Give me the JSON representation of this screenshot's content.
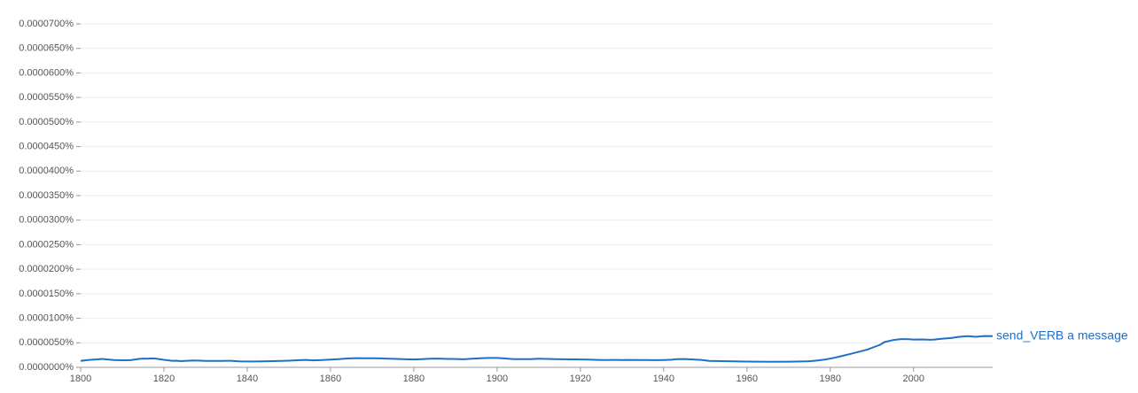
{
  "chart_data": {
    "type": "line",
    "x": [
      1800,
      1801,
      1802,
      1804,
      1805,
      1806,
      1808,
      1810,
      1812,
      1814,
      1815,
      1816,
      1817,
      1818,
      1820,
      1822,
      1823,
      1824,
      1825,
      1827,
      1829,
      1830,
      1832,
      1834,
      1836,
      1838,
      1840,
      1842,
      1844,
      1846,
      1848,
      1850,
      1852,
      1854,
      1856,
      1858,
      1860,
      1862,
      1864,
      1866,
      1868,
      1870,
      1872,
      1874,
      1876,
      1878,
      1880,
      1882,
      1884,
      1886,
      1888,
      1890,
      1892,
      1894,
      1896,
      1898,
      1900,
      1902,
      1904,
      1906,
      1908,
      1910,
      1912,
      1914,
      1916,
      1918,
      1920,
      1922,
      1924,
      1926,
      1928,
      1930,
      1932,
      1934,
      1936,
      1938,
      1940,
      1942,
      1943,
      1945,
      1947,
      1949,
      1951,
      1953,
      1955,
      1957,
      1960,
      1963,
      1966,
      1970,
      1973,
      1975,
      1977,
      1979,
      1981,
      1983,
      1985,
      1987,
      1989,
      1990,
      1992,
      1993,
      1995,
      1997,
      1999,
      2000,
      2002,
      2004,
      2005,
      2007,
      2009,
      2011,
      2013,
      2015,
      2017,
      2019
    ],
    "series": [
      {
        "name": "send_VERB a message",
        "color": "#1f6fc5",
        "values": [
          1.3e-06,
          1.43e-06,
          1.52e-06,
          1.62e-06,
          1.71e-06,
          1.64e-06,
          1.48e-06,
          1.44e-06,
          1.46e-06,
          1.71e-06,
          1.79e-06,
          1.75e-06,
          1.82e-06,
          1.79e-06,
          1.53e-06,
          1.34e-06,
          1.35e-06,
          1.26e-06,
          1.3e-06,
          1.41e-06,
          1.35e-06,
          1.3e-06,
          1.32e-06,
          1.32e-06,
          1.34e-06,
          1.23e-06,
          1.19e-06,
          1.19e-06,
          1.21e-06,
          1.26e-06,
          1.3e-06,
          1.35e-06,
          1.44e-06,
          1.52e-06,
          1.43e-06,
          1.48e-06,
          1.59e-06,
          1.68e-06,
          1.8e-06,
          1.88e-06,
          1.86e-06,
          1.84e-06,
          1.82e-06,
          1.75e-06,
          1.71e-06,
          1.64e-06,
          1.61e-06,
          1.68e-06,
          1.75e-06,
          1.79e-06,
          1.71e-06,
          1.7e-06,
          1.64e-06,
          1.75e-06,
          1.86e-06,
          1.91e-06,
          1.91e-06,
          1.8e-06,
          1.68e-06,
          1.66e-06,
          1.68e-06,
          1.75e-06,
          1.71e-06,
          1.66e-06,
          1.64e-06,
          1.62e-06,
          1.61e-06,
          1.57e-06,
          1.52e-06,
          1.5e-06,
          1.52e-06,
          1.5e-06,
          1.52e-06,
          1.48e-06,
          1.48e-06,
          1.46e-06,
          1.5e-06,
          1.55e-06,
          1.68e-06,
          1.7e-06,
          1.61e-06,
          1.52e-06,
          1.32e-06,
          1.28e-06,
          1.25e-06,
          1.21e-06,
          1.17e-06,
          1.15e-06,
          1.14e-06,
          1.15e-06,
          1.19e-06,
          1.25e-06,
          1.39e-06,
          1.62e-06,
          1.95e-06,
          2.35e-06,
          2.76e-06,
          3.19e-06,
          3.65e-06,
          3.97e-06,
          4.6e-06,
          5.14e-06,
          5.54e-06,
          5.76e-06,
          5.72e-06,
          5.67e-06,
          5.68e-06,
          5.61e-06,
          5.67e-06,
          5.85e-06,
          5.97e-06,
          6.22e-06,
          6.37e-06,
          6.22e-06,
          6.39e-06,
          6.35e-06
        ]
      }
    ],
    "xlim": [
      1800,
      2019
    ],
    "xticks": [
      1800,
      1820,
      1840,
      1860,
      1880,
      1900,
      1920,
      1940,
      1960,
      1980,
      2000
    ],
    "ylim": [
      0,
      7e-05
    ],
    "yticks": [
      {
        "value": 0,
        "label": "0.0000000%"
      },
      {
        "value": 5e-06,
        "label": "0.0000050%"
      },
      {
        "value": 1e-05,
        "label": "0.0000100%"
      },
      {
        "value": 1.5e-05,
        "label": "0.0000150%"
      },
      {
        "value": 2e-05,
        "label": "0.0000200%"
      },
      {
        "value": 2.5e-05,
        "label": "0.0000250%"
      },
      {
        "value": 3e-05,
        "label": "0.0000300%"
      },
      {
        "value": 3.5e-05,
        "label": "0.0000350%"
      },
      {
        "value": 4e-05,
        "label": "0.0000400%"
      },
      {
        "value": 4.5e-05,
        "label": "0.0000450%"
      },
      {
        "value": 5e-05,
        "label": "0.0000500%"
      },
      {
        "value": 5.5e-05,
        "label": "0.0000550%"
      },
      {
        "value": 6e-05,
        "label": "0.0000600%"
      },
      {
        "value": 6.5e-05,
        "label": "0.0000650%"
      },
      {
        "value": 7e-05,
        "label": "0.0000700%"
      }
    ],
    "grid": true
  }
}
